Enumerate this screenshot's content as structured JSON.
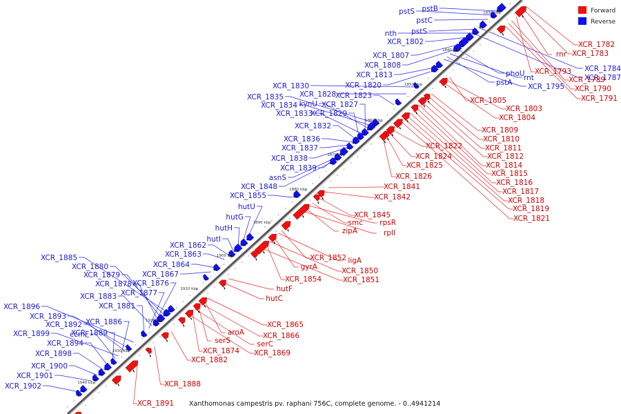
{
  "colors": {
    "forward": "#ee1111",
    "reverse": "#1111ee",
    "backbone": "#555555"
  },
  "legend": {
    "forward_label": "Forward",
    "reverse_label": "Reverse"
  },
  "caption": "Xanthomonas campestris pv. raphani 756C, complete genome. - 0..4941214",
  "kbp_ticks": [
    "1830 kbp",
    "1840 kbp",
    "1850 kbp",
    "1860 kbp",
    "1870 kbp",
    "1880 kbp",
    "1890 kbp",
    "1900 kbp",
    "1910 kbp",
    "1920 kbp",
    "1930 kbp",
    "1940 kbp"
  ],
  "reverse_labels": [
    "pstB",
    "pstS",
    "pstC",
    "pstS",
    "nth",
    "XCR_1802",
    "XCR_1807",
    "XCR_1808",
    "XCR_1813",
    "XCR_1820",
    "XCR_1830",
    "XCR_1828",
    "XCR_1823",
    "XCR_1835",
    "XCR_1834",
    "kynU",
    "XCR_1827",
    "XCR_1833",
    "XCR_1829",
    "XCR_1832",
    "XCR_1836",
    "XCR_1837",
    "XCR_1838",
    "XCR_1839",
    "asnS",
    "XCR_1848",
    "XCR_1855",
    "hutU",
    "hutG",
    "hutH",
    "hutI",
    "XCR_1862",
    "XCR_1863",
    "XCR_1864",
    "XCR_1867",
    "XCR_1885",
    "XCR_1880",
    "XCR_1879",
    "XCR_1878",
    "XCR_1876",
    "XCR_1883",
    "XCR_1877",
    "XCR_1881",
    "XCR_1896",
    "XCR_1893",
    "XCR_1892",
    "XCR_1886",
    "XCR_1899",
    "ccmF",
    "XCR_1889",
    "XCR_1894",
    "XCR_1898",
    "XCR_1900",
    "XCR_1901",
    "XCR_1902",
    "XCR_1784",
    "XCR_1787",
    "phoU",
    "rnt",
    "pstA",
    "XCR_1795"
  ],
  "forward_labels": [
    "XCR_1782",
    "XCR_1783",
    "rnr",
    "XCR_1793",
    "XCR_1789",
    "XCR_1790",
    "XCR_1791",
    "XCR_1805",
    "XCR_1803",
    "XCR_1804",
    "XCR_1809",
    "XCR_1810",
    "XCR_1811",
    "XCR_1812",
    "XCR_1814",
    "XCR_1815",
    "XCR_1816",
    "XCR_1817",
    "XCR_1818",
    "XCR_1819",
    "XCR_1821",
    "XCR_1822",
    "XCR_1824",
    "XCR_1825",
    "XCR_1826",
    "XCR_1841",
    "XCR_1842",
    "XCR_1845",
    "smc",
    "rpsR",
    "zipA",
    "rplI",
    "XCR_1852",
    "ligA",
    "gyrA",
    "XCR_1850",
    "XCR_1854",
    "XCR_1851",
    "hutF",
    "hutC",
    "XCR_1865",
    "aroA",
    "XCR_1866",
    "serS",
    "serC",
    "XCR_1874",
    "XCR_1869",
    "XCR_1882",
    "XCR_1888",
    "XCR_1891"
  ]
}
